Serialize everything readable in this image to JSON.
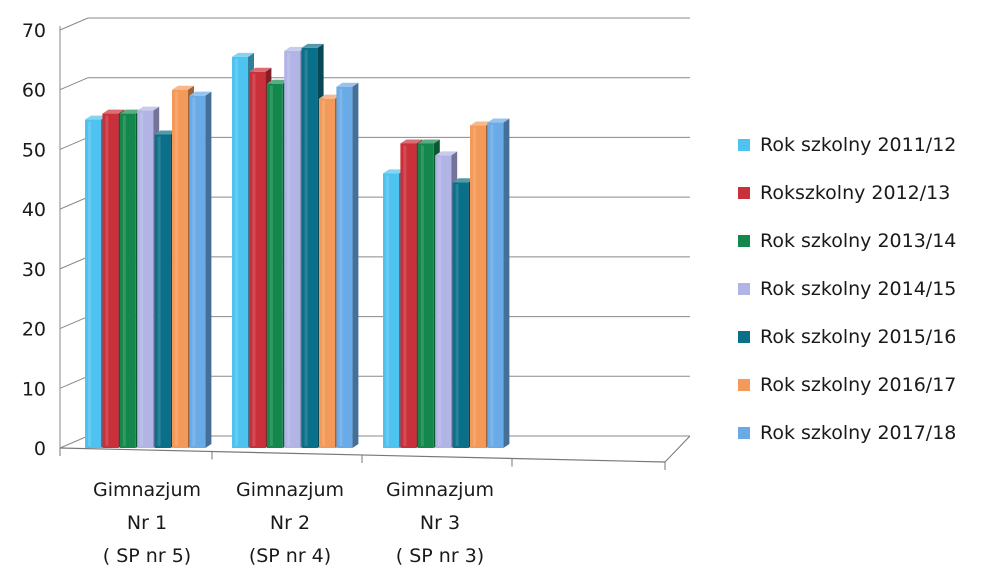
{
  "chart_data": {
    "type": "bar",
    "title": "",
    "xlabel": "",
    "ylabel": "",
    "ylim": [
      0,
      70
    ],
    "yticks": [
      0,
      10,
      20,
      30,
      40,
      50,
      60,
      70
    ],
    "grid": true,
    "legend_position": "right",
    "categories": [
      [
        "Gimnazjum",
        "Nr 1",
        "( SP nr 5)"
      ],
      [
        "Gimnazjum",
        "Nr 2",
        "(SP nr 4)"
      ],
      [
        "Gimnazjum",
        "Nr 3",
        "( SP nr 3)"
      ]
    ],
    "series": [
      {
        "name": "Rok szkolny 2011/12",
        "color": "#4fc3ef",
        "values": [
          55,
          65.5,
          46
        ]
      },
      {
        "name": "Rokszkolny 2012/13",
        "color": "#c9303a",
        "values": [
          56,
          63,
          51
        ]
      },
      {
        "name": "Rok szkolny 2013/14",
        "color": "#14884c",
        "values": [
          56,
          61,
          51
        ]
      },
      {
        "name": "Rok szkolny 2014/15",
        "color": "#b2b4e6",
        "values": [
          56.5,
          66.5,
          49
        ]
      },
      {
        "name": "Rok szkolny 2015/16",
        "color": "#0a6f88",
        "values": [
          52.5,
          67,
          44.5
        ]
      },
      {
        "name": "Rok szkolny 2016/17",
        "color": "#f39a5a",
        "values": [
          60,
          58.5,
          54
        ]
      },
      {
        "name": "Rok szkolny 2017/18",
        "color": "#6aaae6",
        "values": [
          59,
          60.5,
          54.5
        ]
      }
    ]
  }
}
